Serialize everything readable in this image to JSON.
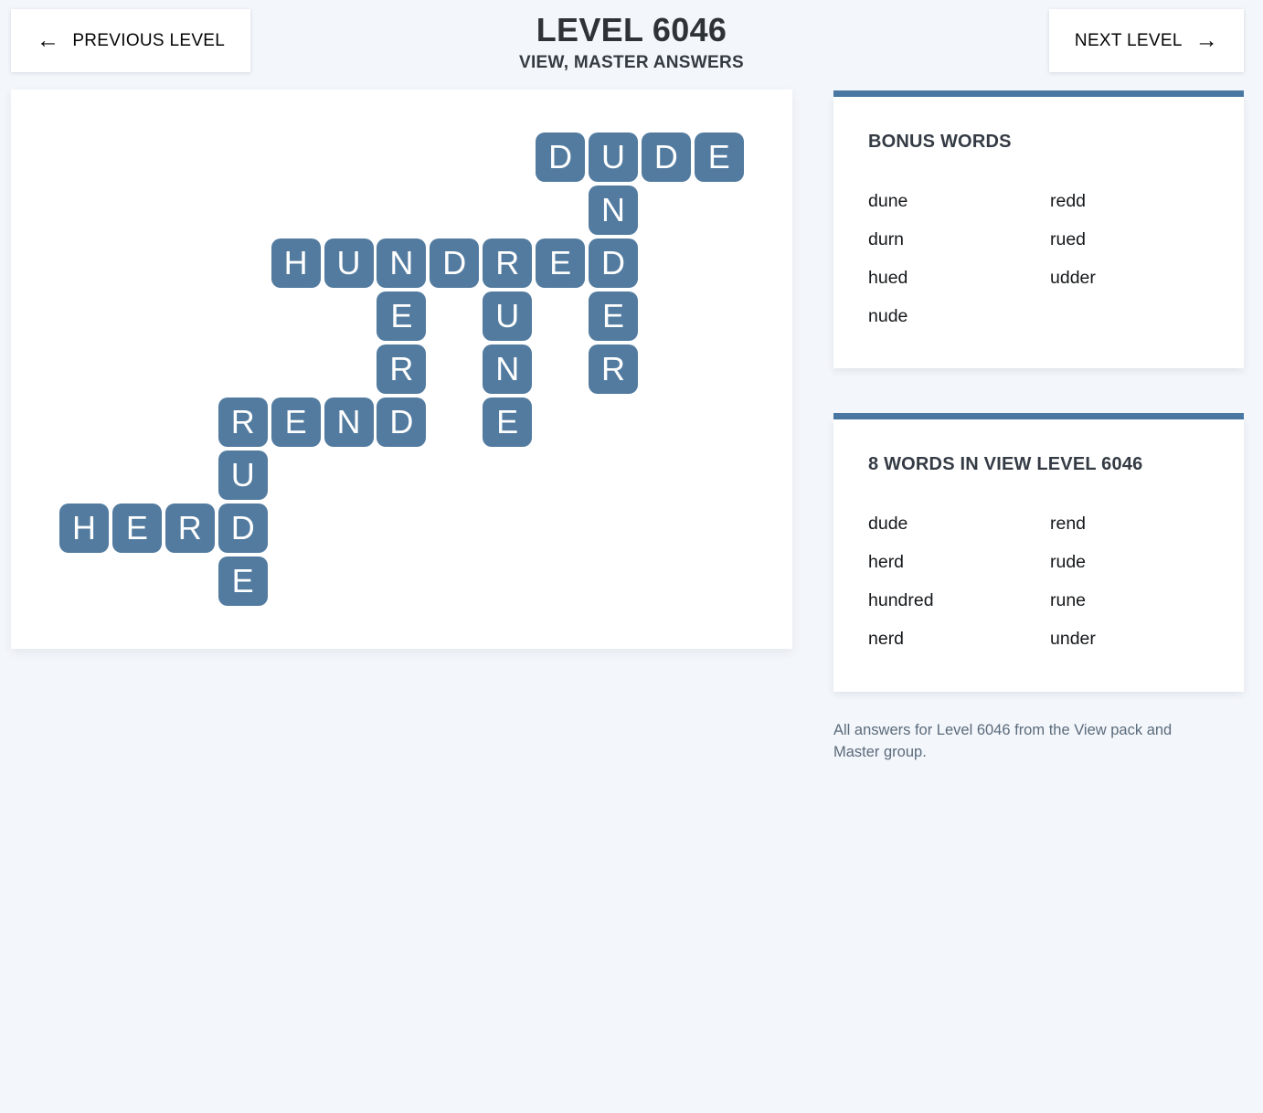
{
  "header": {
    "prev_arrow": "←",
    "prev_label": "PREVIOUS LEVEL",
    "title": "LEVEL 6046",
    "subtitle": "VIEW, MASTER ANSWERS",
    "next_label": "NEXT LEVEL",
    "next_arrow": "→"
  },
  "colors": {
    "page_bg": "#f3f6fa",
    "tile": "#527b9f",
    "accent_bar": "#4a78a3"
  },
  "grid": {
    "tiles": [
      {
        "c": 9,
        "r": 0,
        "letter": "D"
      },
      {
        "c": 10,
        "r": 0,
        "letter": "U"
      },
      {
        "c": 11,
        "r": 0,
        "letter": "D"
      },
      {
        "c": 12,
        "r": 0,
        "letter": "E"
      },
      {
        "c": 10,
        "r": 1,
        "letter": "N"
      },
      {
        "c": 4,
        "r": 2,
        "letter": "H"
      },
      {
        "c": 5,
        "r": 2,
        "letter": "U"
      },
      {
        "c": 6,
        "r": 2,
        "letter": "N"
      },
      {
        "c": 7,
        "r": 2,
        "letter": "D"
      },
      {
        "c": 8,
        "r": 2,
        "letter": "R"
      },
      {
        "c": 9,
        "r": 2,
        "letter": "E"
      },
      {
        "c": 10,
        "r": 2,
        "letter": "D"
      },
      {
        "c": 6,
        "r": 3,
        "letter": "E"
      },
      {
        "c": 8,
        "r": 3,
        "letter": "U"
      },
      {
        "c": 10,
        "r": 3,
        "letter": "E"
      },
      {
        "c": 6,
        "r": 4,
        "letter": "R"
      },
      {
        "c": 8,
        "r": 4,
        "letter": "N"
      },
      {
        "c": 10,
        "r": 4,
        "letter": "R"
      },
      {
        "c": 3,
        "r": 5,
        "letter": "R"
      },
      {
        "c": 4,
        "r": 5,
        "letter": "E"
      },
      {
        "c": 5,
        "r": 5,
        "letter": "N"
      },
      {
        "c": 6,
        "r": 5,
        "letter": "D"
      },
      {
        "c": 8,
        "r": 5,
        "letter": "E"
      },
      {
        "c": 3,
        "r": 6,
        "letter": "U"
      },
      {
        "c": 0,
        "r": 7,
        "letter": "H"
      },
      {
        "c": 1,
        "r": 7,
        "letter": "E"
      },
      {
        "c": 2,
        "r": 7,
        "letter": "R"
      },
      {
        "c": 3,
        "r": 7,
        "letter": "D"
      },
      {
        "c": 3,
        "r": 8,
        "letter": "E"
      }
    ]
  },
  "bonus_panel": {
    "heading": "BONUS WORDS",
    "words": [
      "dune",
      "durn",
      "hued",
      "nude",
      "redd",
      "rued",
      "udder"
    ]
  },
  "words_panel": {
    "heading": "8 WORDS IN VIEW LEVEL 6046",
    "words": [
      "dude",
      "herd",
      "hundred",
      "nerd",
      "rend",
      "rude",
      "rune",
      "under"
    ]
  },
  "footer_note": "All answers for Level 6046 from the View pack and Master group."
}
